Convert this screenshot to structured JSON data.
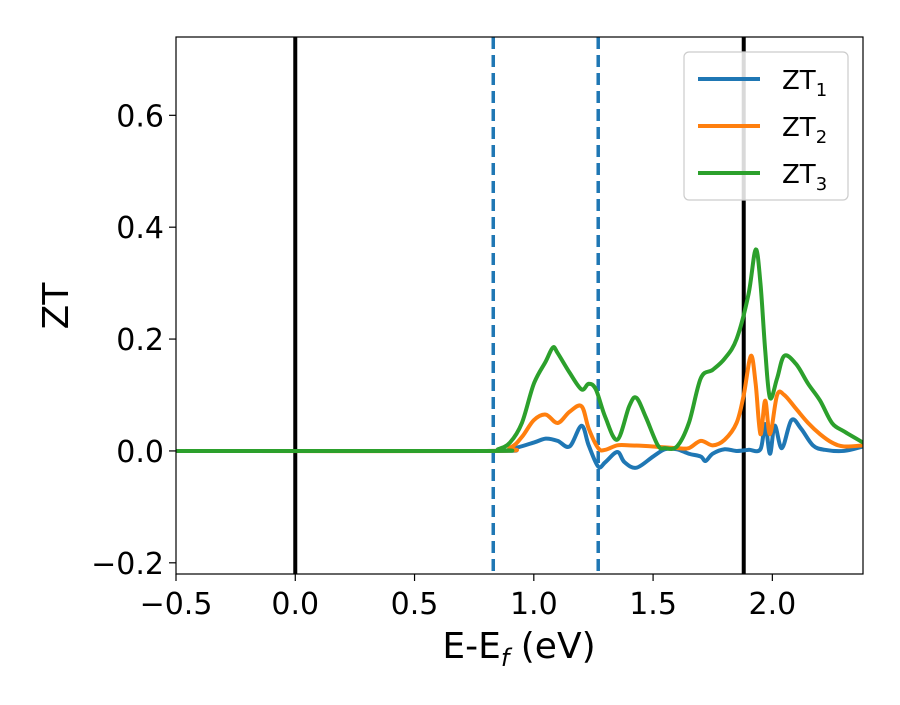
{
  "chart_data": {
    "type": "line",
    "xlabel": "E-E",
    "xlabel_sub": "f",
    "xlabel_unit": "(eV)",
    "ylabel": "ZT",
    "xlim": [
      -0.5,
      2.38
    ],
    "ylim": [
      -0.22,
      0.74
    ],
    "xticks": [
      -0.5,
      0.0,
      0.5,
      1.0,
      1.5,
      2.0
    ],
    "xtick_labels": [
      "−0.5",
      "0.0",
      "0.5",
      "1.0",
      "1.5",
      "2.0"
    ],
    "yticks": [
      -0.2,
      0.0,
      0.2,
      0.4,
      0.6
    ],
    "ytick_labels": [
      "−0.2",
      "0.0",
      "0.2",
      "0.4",
      "0.6"
    ],
    "grid": false,
    "legend_position": "top-right",
    "legend": [
      {
        "base": "ZT",
        "sub": "1",
        "color": "#1f77b4"
      },
      {
        "base": "ZT",
        "sub": "2",
        "color": "#ff7f0e"
      },
      {
        "base": "ZT",
        "sub": "3",
        "color": "#2ca02c"
      }
    ],
    "vlines": [
      {
        "x": 0.0,
        "style": "solid",
        "color": "#000000"
      },
      {
        "x": 0.83,
        "style": "dashed",
        "color": "#1f77b4"
      },
      {
        "x": 1.27,
        "style": "dashed",
        "color": "#1f77b4"
      },
      {
        "x": 1.88,
        "style": "solid",
        "color": "#000000"
      }
    ],
    "series": [
      {
        "name": "ZT1",
        "color": "#1f77b4",
        "x": [
          -0.5,
          0.8,
          0.9,
          1.0,
          1.05,
          1.1,
          1.15,
          1.2,
          1.23,
          1.27,
          1.3,
          1.35,
          1.38,
          1.43,
          1.5,
          1.55,
          1.6,
          1.65,
          1.7,
          1.72,
          1.75,
          1.8,
          1.85,
          1.9,
          1.95,
          1.97,
          1.99,
          2.01,
          2.04,
          2.08,
          2.12,
          2.17,
          2.22,
          2.3,
          2.38
        ],
        "y": [
          0.0,
          0.0,
          0.003,
          0.015,
          0.022,
          0.018,
          0.008,
          0.045,
          0.01,
          -0.028,
          -0.02,
          -0.002,
          -0.02,
          -0.03,
          -0.01,
          0.003,
          0.003,
          -0.005,
          -0.01,
          -0.018,
          -0.005,
          0.003,
          0.0,
          0.002,
          0.003,
          0.048,
          -0.005,
          0.045,
          0.005,
          0.055,
          0.04,
          0.01,
          0.002,
          0.0,
          0.008
        ]
      },
      {
        "name": "ZT2",
        "color": "#ff7f0e",
        "x": [
          -0.5,
          0.8,
          0.9,
          0.95,
          1.0,
          1.05,
          1.1,
          1.15,
          1.2,
          1.23,
          1.27,
          1.3,
          1.35,
          1.4,
          1.5,
          1.6,
          1.65,
          1.7,
          1.75,
          1.8,
          1.85,
          1.88,
          1.91,
          1.93,
          1.95,
          1.97,
          1.99,
          2.02,
          2.05,
          2.1,
          2.15,
          2.2,
          2.25,
          2.3,
          2.38
        ],
        "y": [
          0.0,
          0.0,
          0.006,
          0.025,
          0.055,
          0.065,
          0.05,
          0.07,
          0.08,
          0.04,
          0.005,
          0.002,
          0.01,
          0.01,
          0.008,
          0.005,
          0.005,
          0.018,
          0.01,
          0.02,
          0.05,
          0.1,
          0.17,
          0.12,
          0.03,
          0.09,
          0.03,
          0.1,
          0.1,
          0.075,
          0.05,
          0.03,
          0.015,
          0.008,
          0.01
        ]
      },
      {
        "name": "ZT3",
        "color": "#2ca02c",
        "x": [
          -0.5,
          0.8,
          0.85,
          0.9,
          0.95,
          1.0,
          1.05,
          1.08,
          1.1,
          1.15,
          1.2,
          1.23,
          1.26,
          1.3,
          1.35,
          1.4,
          1.43,
          1.47,
          1.52,
          1.55,
          1.6,
          1.65,
          1.7,
          1.75,
          1.8,
          1.85,
          1.9,
          1.93,
          1.95,
          1.97,
          1.99,
          2.02,
          2.05,
          2.1,
          2.15,
          2.2,
          2.25,
          2.3,
          2.38
        ],
        "y": [
          0.0,
          0.0,
          0.003,
          0.015,
          0.05,
          0.12,
          0.16,
          0.185,
          0.175,
          0.14,
          0.11,
          0.12,
          0.11,
          0.06,
          0.02,
          0.08,
          0.095,
          0.06,
          0.01,
          0.005,
          0.008,
          0.05,
          0.13,
          0.145,
          0.165,
          0.2,
          0.28,
          0.36,
          0.3,
          0.18,
          0.095,
          0.13,
          0.17,
          0.155,
          0.12,
          0.09,
          0.05,
          0.035,
          0.015
        ]
      }
    ]
  }
}
